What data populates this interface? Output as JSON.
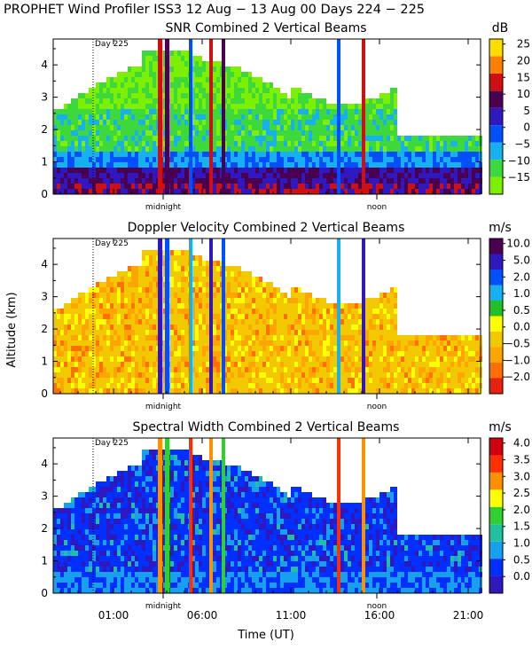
{
  "header": {
    "title": "PROPHET Wind Profiler ISS3  12 Aug − 13 Aug 00 Days 224 − 225"
  },
  "axes": {
    "ylabel": "Altitude (km)",
    "xlabel": "Time (UT)",
    "day_marker": "Day 225",
    "midnight_label": "midnight",
    "noon_label": "noon"
  },
  "chart_data": [
    {
      "type": "heatmap",
      "title": "SNR Combined 2 Vertical Beams",
      "units": "dB",
      "ylim": [
        0,
        4.8
      ],
      "yticks": [
        "0",
        "1",
        "2",
        "3",
        "4"
      ],
      "xticks": [
        "01:00",
        "06:00",
        "11:00",
        "16:00",
        "21:00"
      ],
      "colorbar_labels": [
        "−15",
        "−10",
        "−5",
        "0",
        "5",
        "10",
        "15",
        "20",
        "25"
      ],
      "colorbar_colors": [
        "#7cf000",
        "#3cd83c",
        "#17b0f0",
        "#0050ff",
        "#3018c0",
        "#4a0050",
        "#d01010",
        "#ff8000",
        "#ffdd00"
      ]
    },
    {
      "type": "heatmap",
      "title": "Doppler Velocity Combined 2 Vertical Beams",
      "units": "m/s",
      "ylim": [
        0,
        4.8
      ],
      "yticks": [
        "0",
        "1",
        "2",
        "3",
        "4"
      ],
      "xticks": [
        "01:00",
        "06:00",
        "11:00",
        "16:00",
        "21:00"
      ],
      "colorbar_labels": [
        "−2.0",
        "−1.0",
        "−0.5",
        "0.0",
        "0.5",
        "1.0",
        "2.0",
        "5.0",
        "10.0"
      ],
      "colorbar_colors": [
        "#e82010",
        "#ff7000",
        "#ffa500",
        "#f2c800",
        "#ffff00",
        "#22c022",
        "#17b0f0",
        "#0050ff",
        "#3018c0",
        "#4a0050"
      ]
    },
    {
      "type": "heatmap",
      "title": "Spectral Width Combined 2 Vertical Beams",
      "units": "m/s",
      "ylim": [
        0,
        4.8
      ],
      "yticks": [
        "0",
        "1",
        "2",
        "3",
        "4"
      ],
      "xticks": [
        "01:00",
        "06:00",
        "11:00",
        "16:00",
        "21:00"
      ],
      "colorbar_labels": [
        "0.0",
        "0.5",
        "1.0",
        "1.5",
        "2.0",
        "2.5",
        "3.0",
        "3.5",
        "4.0"
      ],
      "colorbar_colors": [
        "#3018c0",
        "#0030ff",
        "#17a0f0",
        "#20c0a0",
        "#30d030",
        "#ffff00",
        "#ff9000",
        "#ff3000",
        "#d00010"
      ]
    }
  ]
}
